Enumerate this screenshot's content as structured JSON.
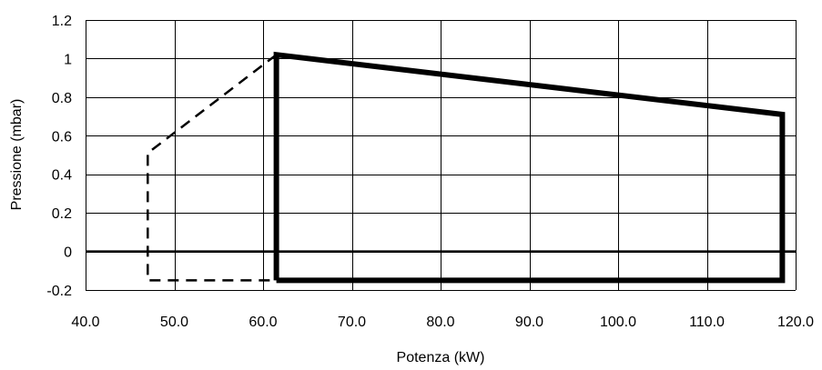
{
  "chart_data": {
    "type": "line",
    "title": "",
    "xlabel": "Potenza (kW)",
    "ylabel": "Pressione (mbar)",
    "xlim": [
      40,
      120
    ],
    "ylim": [
      -0.2,
      1.2
    ],
    "x_ticks": [
      40,
      50,
      60,
      70,
      80,
      90,
      100,
      110,
      120
    ],
    "x_tick_labels": [
      "40.0",
      "50.0",
      "60.0",
      "70.0",
      "80.0",
      "90.0",
      "100.0",
      "110.0",
      "120.0"
    ],
    "y_ticks": [
      -0.2,
      0,
      0.2,
      0.4,
      0.6,
      0.8,
      1,
      1.2
    ],
    "y_tick_labels": [
      "-0.2",
      "0",
      "0.2",
      "0.4",
      "0.6",
      "0.8",
      "1",
      "1.2"
    ],
    "grid": true,
    "zero_line": 0,
    "series": [
      {
        "style": "solid",
        "color": "#000000",
        "points": [
          [
            61.5,
            -0.15
          ],
          [
            61.5,
            1.02
          ],
          [
            118.5,
            0.71
          ],
          [
            118.5,
            -0.15
          ],
          [
            61.5,
            -0.15
          ]
        ]
      },
      {
        "style": "dashed",
        "color": "#000000",
        "points": [
          [
            61.5,
            1.02
          ],
          [
            47,
            0.51
          ],
          [
            47,
            -0.15
          ],
          [
            61.5,
            -0.15
          ]
        ]
      }
    ]
  }
}
